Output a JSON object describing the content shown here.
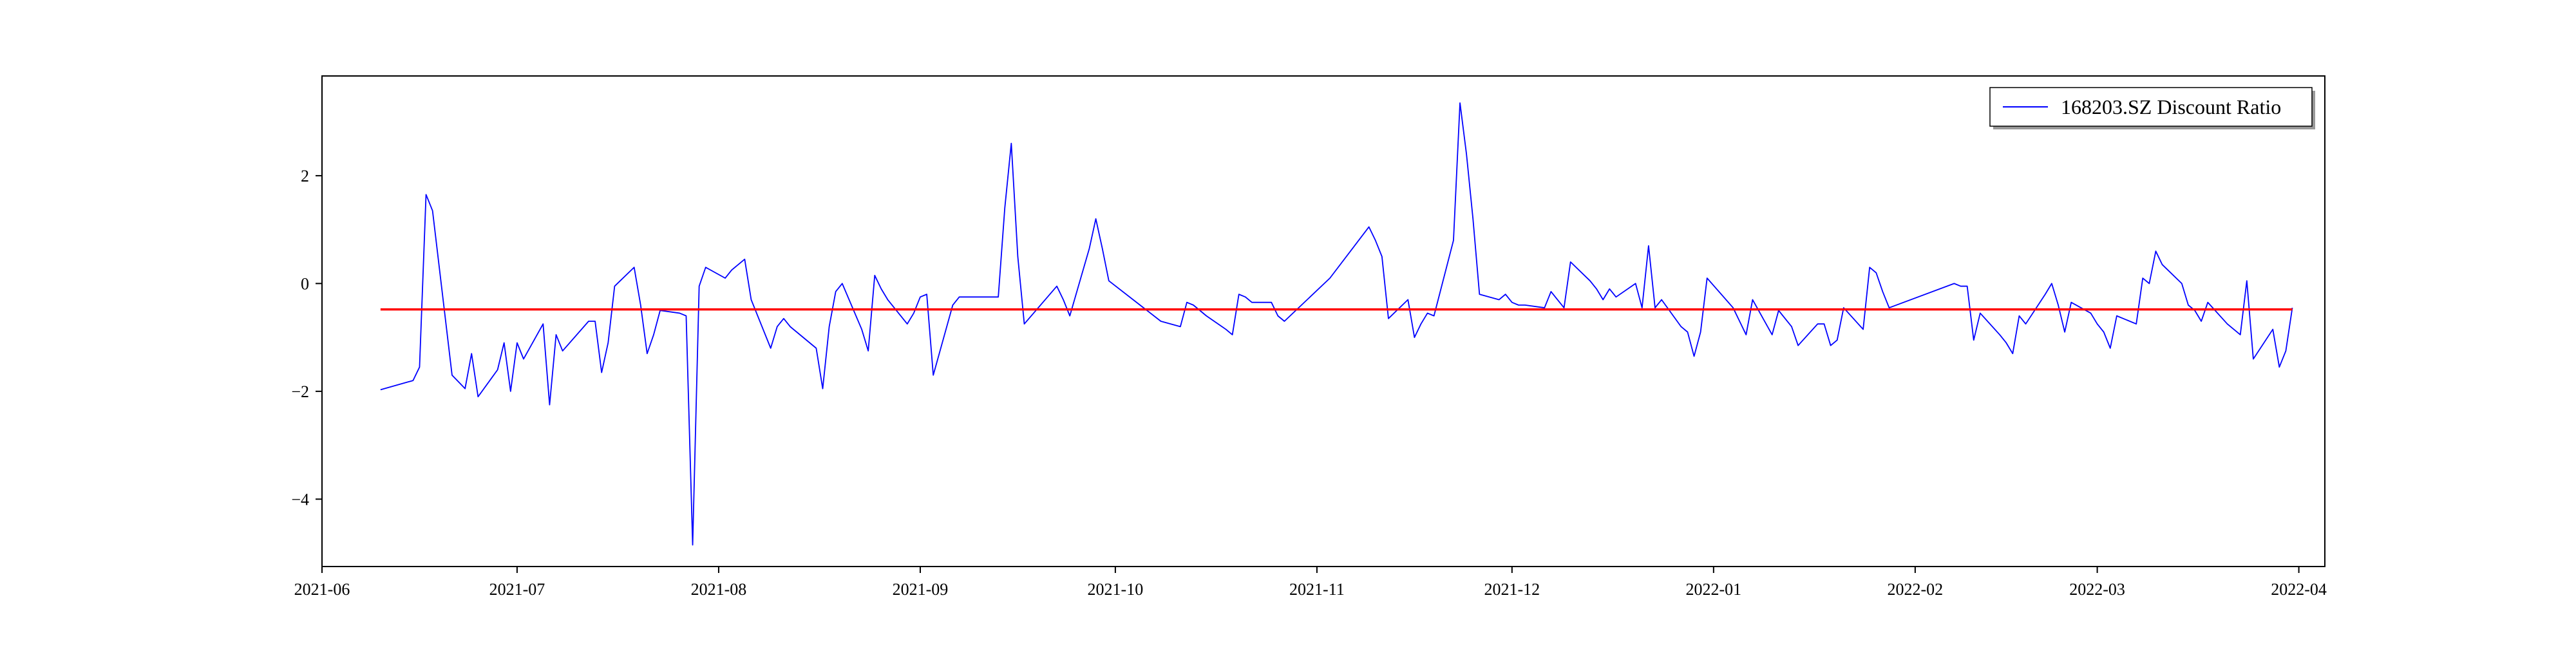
{
  "chart_data": {
    "type": "line",
    "title": "",
    "xlabel": "",
    "ylabel": "",
    "grid": false,
    "legend_position": "top-right",
    "xlim": [
      "2021-06-01",
      "2022-04-05"
    ],
    "ylim": [
      -5.25,
      3.85
    ],
    "x_ticks": [
      "2021-06-01",
      "2021-07-01",
      "2021-08-01",
      "2021-09-01",
      "2021-10-01",
      "2021-11-01",
      "2021-12-01",
      "2022-01-01",
      "2022-02-01",
      "2022-03-01",
      "2022-04-01"
    ],
    "x_tick_labels": [
      "2021-06",
      "2021-07",
      "2021-08",
      "2021-09",
      "2021-10",
      "2021-11",
      "2021-12",
      "2022-01",
      "2022-02",
      "2022-03",
      "2022-04"
    ],
    "y_ticks": [
      -4,
      -2,
      0,
      2
    ],
    "y_tick_labels": [
      "−4",
      "−2",
      "0",
      "2"
    ],
    "series": [
      {
        "name": "168203.SZ Discount Ratio",
        "color": "#0000ff",
        "points": [
          [
            "2021-06-10",
            -1.97
          ],
          [
            "2021-06-15",
            -1.8
          ],
          [
            "2021-06-16",
            -1.55
          ],
          [
            "2021-06-17",
            1.65
          ],
          [
            "2021-06-18",
            1.35
          ],
          [
            "2021-06-21",
            -1.7
          ],
          [
            "2021-06-23",
            -1.95
          ],
          [
            "2021-06-24",
            -1.3
          ],
          [
            "2021-06-25",
            -2.1
          ],
          [
            "2021-06-28",
            -1.6
          ],
          [
            "2021-06-29",
            -1.1
          ],
          [
            "2021-06-30",
            -2.0
          ],
          [
            "2021-07-01",
            -1.1
          ],
          [
            "2021-07-02",
            -1.4
          ],
          [
            "2021-07-05",
            -0.75
          ],
          [
            "2021-07-06",
            -2.25
          ],
          [
            "2021-07-07",
            -0.95
          ],
          [
            "2021-07-08",
            -1.25
          ],
          [
            "2021-07-12",
            -0.7
          ],
          [
            "2021-07-13",
            -0.7
          ],
          [
            "2021-07-14",
            -1.65
          ],
          [
            "2021-07-15",
            -1.1
          ],
          [
            "2021-07-16",
            -0.05
          ],
          [
            "2021-07-19",
            0.3
          ],
          [
            "2021-07-20",
            -0.4
          ],
          [
            "2021-07-21",
            -1.3
          ],
          [
            "2021-07-22",
            -0.95
          ],
          [
            "2021-07-23",
            -0.5
          ],
          [
            "2021-07-26",
            -0.55
          ],
          [
            "2021-07-27",
            -0.6
          ],
          [
            "2021-07-28",
            -4.85
          ],
          [
            "2021-07-29",
            -0.05
          ],
          [
            "2021-07-30",
            0.3
          ],
          [
            "2021-08-02",
            0.1
          ],
          [
            "2021-08-03",
            0.25
          ],
          [
            "2021-08-04",
            0.35
          ],
          [
            "2021-08-05",
            0.45
          ],
          [
            "2021-08-06",
            -0.3
          ],
          [
            "2021-08-09",
            -1.2
          ],
          [
            "2021-08-10",
            -0.8
          ],
          [
            "2021-08-11",
            -0.65
          ],
          [
            "2021-08-12",
            -0.8
          ],
          [
            "2021-08-13",
            -0.9
          ],
          [
            "2021-08-16",
            -1.2
          ],
          [
            "2021-08-17",
            -1.95
          ],
          [
            "2021-08-18",
            -0.8
          ],
          [
            "2021-08-19",
            -0.15
          ],
          [
            "2021-08-20",
            0.0
          ],
          [
            "2021-08-23",
            -0.85
          ],
          [
            "2021-08-24",
            -1.25
          ],
          [
            "2021-08-25",
            0.15
          ],
          [
            "2021-08-26",
            -0.1
          ],
          [
            "2021-08-27",
            -0.3
          ],
          [
            "2021-08-30",
            -0.75
          ],
          [
            "2021-08-31",
            -0.55
          ],
          [
            "2021-09-01",
            -0.25
          ],
          [
            "2021-09-02",
            -0.2
          ],
          [
            "2021-09-03",
            -1.7
          ],
          [
            "2021-09-06",
            -0.4
          ],
          [
            "2021-09-07",
            -0.25
          ],
          [
            "2021-09-08",
            -0.25
          ],
          [
            "2021-09-13",
            -0.25
          ],
          [
            "2021-09-14",
            1.4
          ],
          [
            "2021-09-15",
            2.6
          ],
          [
            "2021-09-16",
            0.5
          ],
          [
            "2021-09-17",
            -0.75
          ],
          [
            "2021-09-22",
            -0.05
          ],
          [
            "2021-09-23",
            -0.3
          ],
          [
            "2021-09-24",
            -0.6
          ],
          [
            "2021-09-27",
            0.65
          ],
          [
            "2021-09-28",
            1.2
          ],
          [
            "2021-09-29",
            0.65
          ],
          [
            "2021-09-30",
            0.05
          ],
          [
            "2021-10-08",
            -0.7
          ],
          [
            "2021-10-11",
            -0.8
          ],
          [
            "2021-10-12",
            -0.35
          ],
          [
            "2021-10-13",
            -0.4
          ],
          [
            "2021-10-14",
            -0.5
          ],
          [
            "2021-10-15",
            -0.6
          ],
          [
            "2021-10-18",
            -0.85
          ],
          [
            "2021-10-19",
            -0.95
          ],
          [
            "2021-10-20",
            -0.2
          ],
          [
            "2021-10-21",
            -0.25
          ],
          [
            "2021-10-22",
            -0.35
          ],
          [
            "2021-10-25",
            -0.35
          ],
          [
            "2021-10-26",
            -0.6
          ],
          [
            "2021-10-27",
            -0.7
          ],
          [
            "2021-11-03",
            0.1
          ],
          [
            "2021-11-09",
            1.05
          ],
          [
            "2021-11-10",
            0.8
          ],
          [
            "2021-11-11",
            0.5
          ],
          [
            "2021-11-12",
            -0.65
          ],
          [
            "2021-11-15",
            -0.3
          ],
          [
            "2021-11-16",
            -1.0
          ],
          [
            "2021-11-17",
            -0.75
          ],
          [
            "2021-11-18",
            -0.55
          ],
          [
            "2021-11-19",
            -0.6
          ],
          [
            "2021-11-22",
            0.8
          ],
          [
            "2021-11-23",
            3.35
          ],
          [
            "2021-11-24",
            2.4
          ],
          [
            "2021-11-25",
            1.2
          ],
          [
            "2021-11-26",
            -0.2
          ],
          [
            "2021-11-29",
            -0.3
          ],
          [
            "2021-11-30",
            -0.2
          ],
          [
            "2021-12-01",
            -0.35
          ],
          [
            "2021-12-02",
            -0.4
          ],
          [
            "2021-12-03",
            -0.4
          ],
          [
            "2021-12-06",
            -0.45
          ],
          [
            "2021-12-07",
            -0.15
          ],
          [
            "2021-12-08",
            -0.3
          ],
          [
            "2021-12-09",
            -0.45
          ],
          [
            "2021-12-10",
            0.4
          ],
          [
            "2021-12-13",
            0.05
          ],
          [
            "2021-12-14",
            -0.1
          ],
          [
            "2021-12-15",
            -0.3
          ],
          [
            "2021-12-16",
            -0.1
          ],
          [
            "2021-12-17",
            -0.25
          ],
          [
            "2021-12-20",
            0.0
          ],
          [
            "2021-12-21",
            -0.45
          ],
          [
            "2021-12-22",
            0.7
          ],
          [
            "2021-12-23",
            -0.45
          ],
          [
            "2021-12-24",
            -0.3
          ],
          [
            "2021-12-27",
            -0.8
          ],
          [
            "2021-12-28",
            -0.9
          ],
          [
            "2021-12-29",
            -1.35
          ],
          [
            "2021-12-30",
            -0.9
          ],
          [
            "2021-12-31",
            0.1
          ],
          [
            "2022-01-04",
            -0.45
          ],
          [
            "2022-01-05",
            -0.7
          ],
          [
            "2022-01-06",
            -0.95
          ],
          [
            "2022-01-07",
            -0.3
          ],
          [
            "2022-01-10",
            -0.95
          ],
          [
            "2022-01-11",
            -0.5
          ],
          [
            "2022-01-12",
            -0.65
          ],
          [
            "2022-01-13",
            -0.8
          ],
          [
            "2022-01-14",
            -1.15
          ],
          [
            "2022-01-17",
            -0.75
          ],
          [
            "2022-01-18",
            -0.75
          ],
          [
            "2022-01-19",
            -1.15
          ],
          [
            "2022-01-20",
            -1.05
          ],
          [
            "2022-01-21",
            -0.45
          ],
          [
            "2022-01-24",
            -0.85
          ],
          [
            "2022-01-25",
            0.3
          ],
          [
            "2022-01-26",
            0.2
          ],
          [
            "2022-01-27",
            -0.15
          ],
          [
            "2022-01-28",
            -0.45
          ],
          [
            "2022-02-07",
            0.0
          ],
          [
            "2022-02-08",
            -0.05
          ],
          [
            "2022-02-09",
            -0.05
          ],
          [
            "2022-02-10",
            -1.05
          ],
          [
            "2022-02-11",
            -0.55
          ],
          [
            "2022-02-14",
            -0.95
          ],
          [
            "2022-02-15",
            -1.1
          ],
          [
            "2022-02-16",
            -1.3
          ],
          [
            "2022-02-17",
            -0.6
          ],
          [
            "2022-02-18",
            -0.75
          ],
          [
            "2022-02-21",
            -0.2
          ],
          [
            "2022-02-22",
            0.0
          ],
          [
            "2022-02-23",
            -0.4
          ],
          [
            "2022-02-24",
            -0.9
          ],
          [
            "2022-02-25",
            -0.35
          ],
          [
            "2022-02-28",
            -0.55
          ],
          [
            "2022-03-01",
            -0.75
          ],
          [
            "2022-03-02",
            -0.9
          ],
          [
            "2022-03-03",
            -1.2
          ],
          [
            "2022-03-04",
            -0.6
          ],
          [
            "2022-03-07",
            -0.75
          ],
          [
            "2022-03-08",
            0.1
          ],
          [
            "2022-03-09",
            0.0
          ],
          [
            "2022-03-10",
            0.6
          ],
          [
            "2022-03-11",
            0.35
          ],
          [
            "2022-03-14",
            0.0
          ],
          [
            "2022-03-15",
            -0.4
          ],
          [
            "2022-03-16",
            -0.5
          ],
          [
            "2022-03-17",
            -0.7
          ],
          [
            "2022-03-18",
            -0.35
          ],
          [
            "2022-03-21",
            -0.75
          ],
          [
            "2022-03-22",
            -0.85
          ],
          [
            "2022-03-23",
            -0.95
          ],
          [
            "2022-03-24",
            0.05
          ],
          [
            "2022-03-25",
            -1.4
          ],
          [
            "2022-03-28",
            -0.85
          ],
          [
            "2022-03-29",
            -1.55
          ],
          [
            "2022-03-30",
            -1.25
          ],
          [
            "2022-03-31",
            -0.45
          ]
        ]
      }
    ],
    "reference_line": {
      "y": -0.48,
      "x_start": "2021-06-10",
      "x_end": "2022-03-31",
      "color": "#ff0000"
    }
  }
}
